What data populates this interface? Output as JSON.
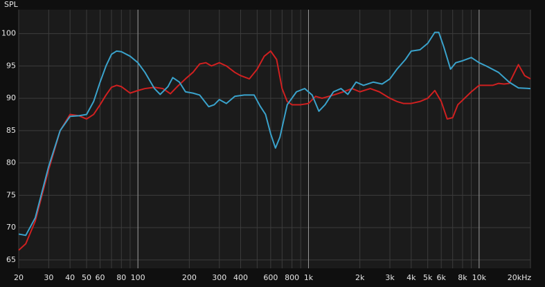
{
  "chart_data": {
    "type": "line",
    "title": "SPL",
    "xscale": "log",
    "grid": true,
    "xlim": [
      20,
      20000
    ],
    "ylim": [
      63.7,
      103.7
    ],
    "yticks": [
      65,
      70,
      75,
      80,
      85,
      90,
      95,
      100
    ],
    "xticks": [
      20,
      30,
      40,
      50,
      60,
      80,
      100,
      200,
      300,
      400,
      600,
      800,
      {
        "value": 1000,
        "label": "1k"
      },
      {
        "value": 2000,
        "label": "2k"
      },
      {
        "value": 3000,
        "label": "3k"
      },
      {
        "value": 4000,
        "label": "4k"
      },
      {
        "value": 5000,
        "label": "5k"
      },
      {
        "value": 6000,
        "label": "6k"
      },
      {
        "value": 8000,
        "label": "8k"
      },
      {
        "value": 10000,
        "label": "10k"
      },
      {
        "value": 20000,
        "label": "20kHz"
      }
    ],
    "x_minor_grid": [
      70,
      90,
      500,
      700,
      900,
      7000,
      9000
    ],
    "x_major_grid": [
      100,
      1000,
      10000
    ],
    "series": [
      {
        "color": "#d02020",
        "x": [
          20,
          22,
          25,
          30,
          35,
          40,
          45,
          50,
          55,
          60,
          65,
          70,
          75,
          80,
          90,
          100,
          110,
          125,
          140,
          155,
          170,
          190,
          210,
          230,
          250,
          270,
          300,
          330,
          370,
          400,
          450,
          500,
          550,
          600,
          650,
          700,
          750,
          800,
          900,
          1000,
          1100,
          1200,
          1400,
          1600,
          1800,
          2000,
          2300,
          2600,
          3000,
          3300,
          3600,
          4000,
          4500,
          5000,
          5500,
          6000,
          6500,
          7000,
          7500,
          8000,
          9000,
          10000,
          12000,
          13000,
          14000,
          15000,
          17000,
          18500,
          20000
        ],
        "values": [
          66.5,
          67.5,
          71,
          79,
          85,
          87.5,
          87.3,
          86.8,
          87.5,
          89,
          90.5,
          91.7,
          92,
          91.8,
          90.8,
          91.2,
          91.5,
          91.7,
          91.5,
          90.7,
          91.8,
          93,
          94,
          95.3,
          95.5,
          95,
          95.5,
          95,
          94,
          93.5,
          93,
          94.5,
          96.5,
          97.3,
          96,
          91.5,
          89.5,
          89,
          89,
          89.2,
          90.3,
          90,
          90.5,
          91,
          91.5,
          91,
          91.5,
          91,
          90,
          89.5,
          89.2,
          89.2,
          89.5,
          90,
          91.2,
          89.5,
          86.8,
          87,
          89,
          89.7,
          91,
          92,
          92,
          92.3,
          92.2,
          92.3,
          95.2,
          93.5,
          93
        ]
      },
      {
        "color": "#3aa3cc",
        "x": [
          20,
          22,
          25,
          30,
          35,
          40,
          45,
          50,
          55,
          60,
          65,
          70,
          75,
          80,
          90,
          100,
          110,
          125,
          135,
          150,
          160,
          175,
          190,
          210,
          230,
          260,
          280,
          300,
          330,
          370,
          420,
          480,
          520,
          560,
          600,
          640,
          680,
          750,
          850,
          950,
          1050,
          1150,
          1250,
          1400,
          1550,
          1700,
          1900,
          2100,
          2400,
          2700,
          3000,
          3300,
          3700,
          4000,
          4500,
          5000,
          5500,
          5800,
          6200,
          6800,
          7300,
          8000,
          9000,
          10000,
          11000,
          13000,
          15000,
          17000,
          20000
        ],
        "values": [
          69,
          68.8,
          71.5,
          79.5,
          85,
          87.2,
          87.3,
          87.5,
          89.5,
          92.5,
          95,
          96.8,
          97.3,
          97.2,
          96.5,
          95.5,
          94,
          91.5,
          90.6,
          91.8,
          93.2,
          92.5,
          91,
          90.8,
          90.5,
          88.7,
          89,
          89.8,
          89.2,
          90.3,
          90.5,
          90.5,
          88.8,
          87.5,
          84.5,
          82.3,
          84,
          89,
          91,
          91.5,
          90.5,
          88,
          89,
          91,
          91.5,
          90.6,
          92.5,
          92,
          92.5,
          92.2,
          93,
          94.5,
          96,
          97.3,
          97.5,
          98.5,
          100.2,
          100.2,
          98,
          94.5,
          95.5,
          95.8,
          96.3,
          95.5,
          95,
          94,
          92.5,
          91.6,
          91.5
        ]
      }
    ]
  }
}
